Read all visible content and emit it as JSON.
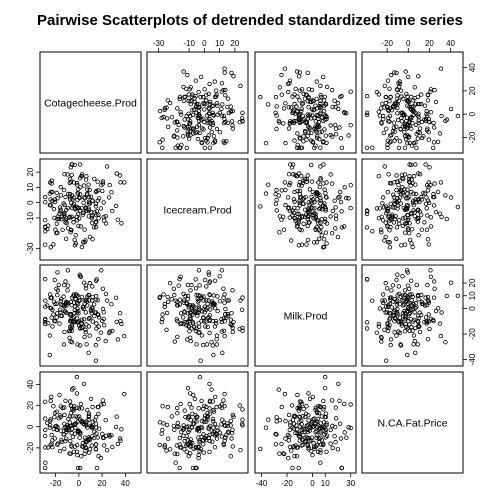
{
  "chart_data": {
    "type": "scatter",
    "title": "Pairwise Scatterplots of detrended standardized time series",
    "variables": [
      "Cotagecheese.Prod",
      "Icecream.Prod",
      "Milk.Prod",
      "N.CA.Fat.Price"
    ],
    "axes": [
      {
        "range": [
          -30,
          50
        ],
        "ticks": [
          -20,
          0,
          20,
          40
        ]
      },
      {
        "range": [
          -35,
          26
        ],
        "ticks": [
          -30,
          -10,
          0,
          10,
          20
        ]
      },
      {
        "range": [
          -42,
          31
        ],
        "ticks": [
          -40,
          -20,
          -10,
          0,
          10,
          20,
          30
        ]
      },
      {
        "range": [
          -40,
          48
        ],
        "ticks": [
          -20,
          0,
          20,
          40
        ]
      }
    ],
    "top_axis_labels": {
      "col1": [
        "-30",
        "-10",
        "0",
        "10",
        "20"
      ],
      "col3": [
        "-20",
        "0",
        "20",
        "40"
      ]
    },
    "bottom_axis_labels": {
      "col0": [
        "-20",
        "0",
        "20",
        "40"
      ],
      "col2": [
        "-40",
        "-20",
        "0",
        "10",
        "30"
      ]
    },
    "left_axis_labels": {
      "row1": [
        "-30",
        "-10",
        "0",
        "10",
        "20"
      ],
      "row3": [
        "-20",
        "0",
        "20",
        "40"
      ]
    },
    "right_axis_labels": {
      "row0": [
        "-20",
        "0",
        "20",
        "40"
      ],
      "row2": [
        "-40",
        "-20",
        "0",
        "10",
        "20"
      ]
    },
    "n_points": 200,
    "grid": false
  }
}
